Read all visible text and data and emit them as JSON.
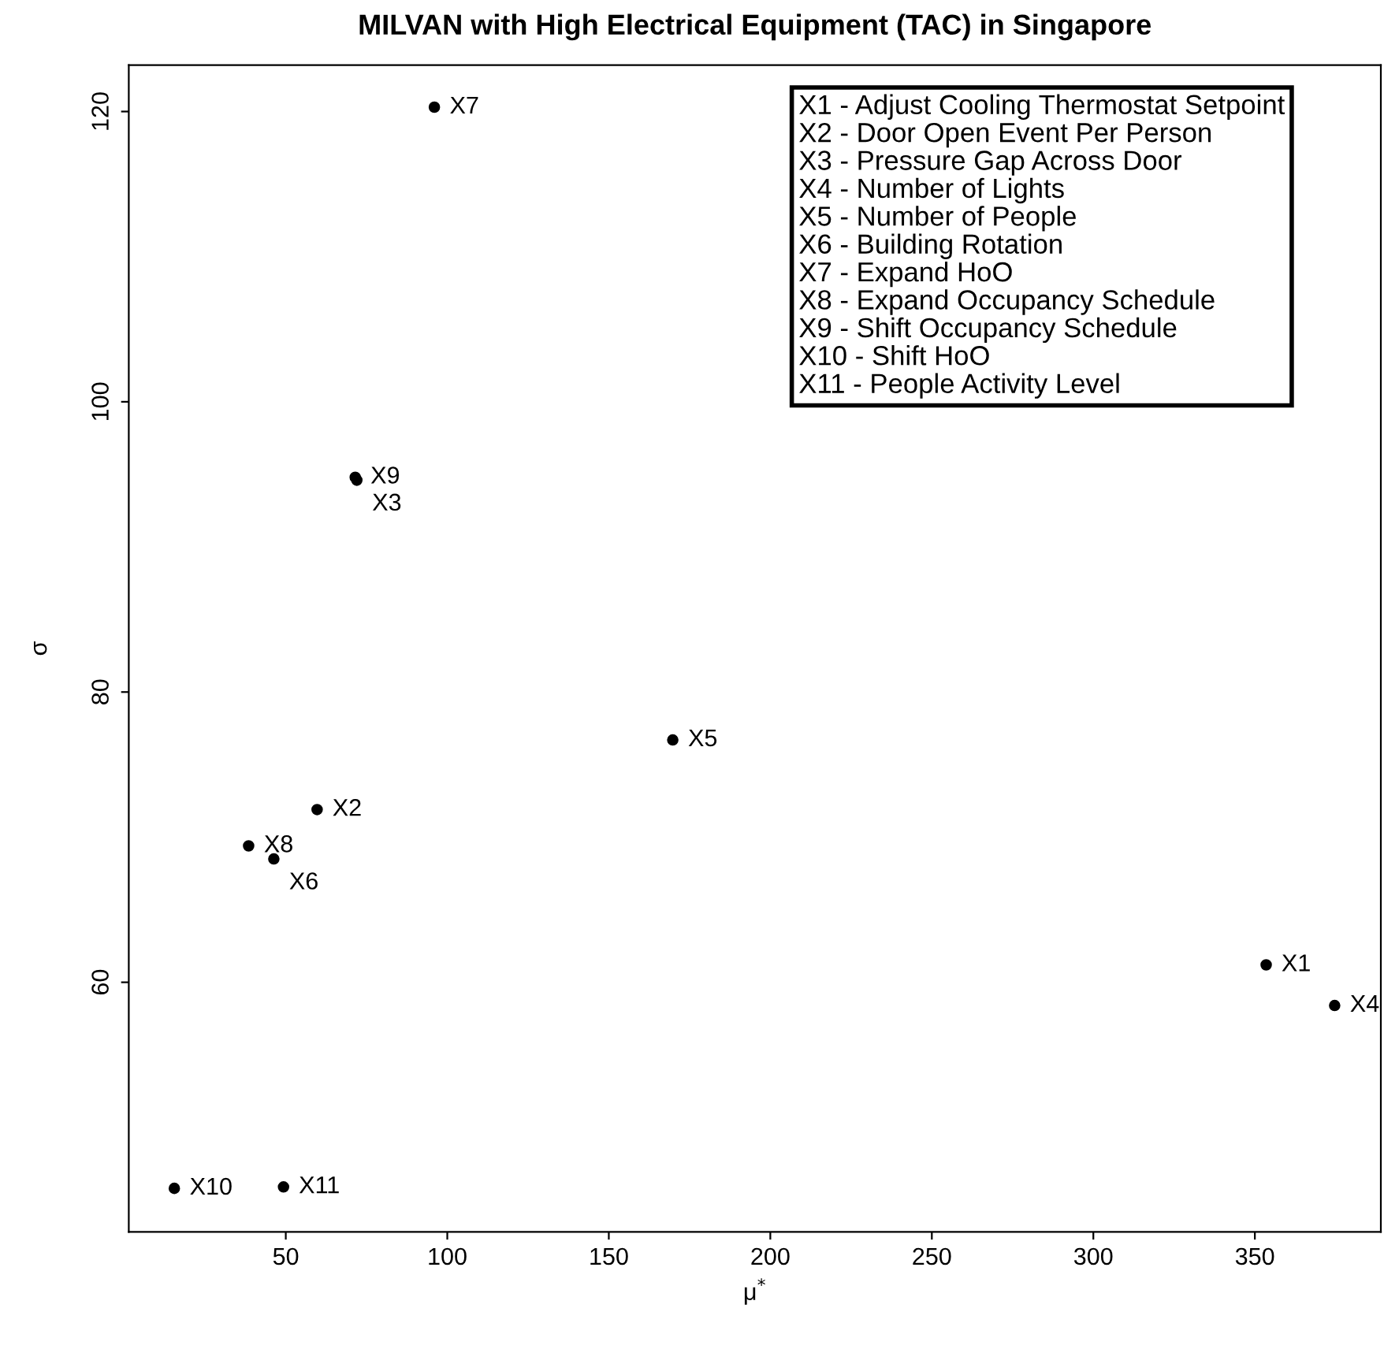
{
  "chart_data": {
    "type": "scatter",
    "title": "MILVAN with High Electrical Equipment (TAC) in Singapore",
    "xlabel": "μ$^{*}$",
    "ylabel": "σ",
    "xlim": [
      1.4,
      389
    ],
    "xticks": [
      50,
      100,
      150,
      200,
      250,
      300,
      350
    ],
    "ylim": [
      42.8,
      123.2
    ],
    "yticks": [
      60,
      80,
      100,
      120
    ],
    "grid": false,
    "legend": false,
    "marker": "circle",
    "series": [
      {
        "name": "X1",
        "color": "#000000",
        "x": [
          353.5
        ],
        "values": [
          61.2
        ]
      },
      {
        "name": "X2",
        "color": "#000000",
        "x": [
          59.7
        ],
        "values": [
          71.9
        ]
      },
      {
        "name": "X3",
        "color": "#000000",
        "x": [
          72.0
        ],
        "values": [
          94.6
        ]
      },
      {
        "name": "X4",
        "color": "#000000",
        "x": [
          374.7
        ],
        "values": [
          58.4
        ]
      },
      {
        "name": "X5",
        "color": "#000000",
        "x": [
          169.8
        ],
        "values": [
          76.7
        ]
      },
      {
        "name": "X6",
        "color": "#000000",
        "x": [
          46.3
        ],
        "values": [
          68.5
        ]
      },
      {
        "name": "X7",
        "color": "#000000",
        "x": [
          96.0
        ],
        "values": [
          120.3
        ]
      },
      {
        "name": "X8",
        "color": "#000000",
        "x": [
          38.5
        ],
        "values": [
          69.4
        ]
      },
      {
        "name": "X9",
        "color": "#000000",
        "x": [
          71.5
        ],
        "values": [
          94.8
        ]
      },
      {
        "name": "X10",
        "color": "#000000",
        "x": [
          15.5
        ],
        "values": [
          45.8
        ]
      },
      {
        "name": "X11",
        "color": "#000000",
        "x": [
          49.3
        ],
        "values": [
          45.9
        ]
      }
    ],
    "annotations": [
      "X1 - Adjust Cooling Thermostat Setpoint",
      "X2 - Door Open Event Per Person",
      "X3 - Pressure Gap Across Door",
      "X4 - Number of Lights",
      "X5 - Number of People",
      "X6 - Building Rotation",
      "X7 - Expand HoO",
      "X8 - Expand Occupancy Schedule",
      "X9 - Shift Occupancy Schedule",
      "X10 - Shift HoO",
      "X11 - People Activity Level"
    ]
  }
}
